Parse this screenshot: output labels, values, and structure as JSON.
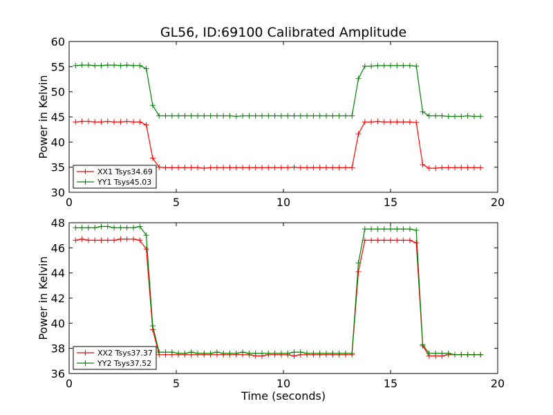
{
  "chart_data": [
    {
      "type": "line",
      "title": "GL56, ID:69100 Calibrated Amplitude",
      "xlabel": "",
      "ylabel": "Power in Kelvin",
      "xlim": [
        0,
        20
      ],
      "ylim": [
        30,
        60
      ],
      "xticks": [
        0,
        5,
        10,
        15,
        20
      ],
      "yticks": [
        30,
        35,
        40,
        45,
        50,
        55,
        60
      ],
      "legend": "lower-left",
      "grid": false,
      "x": [
        0.3,
        0.6,
        0.9,
        1.2,
        1.5,
        1.8,
        2.1,
        2.4,
        2.7,
        3.0,
        3.3,
        3.6,
        3.9,
        4.2,
        4.5,
        4.8,
        5.1,
        5.4,
        5.7,
        6.0,
        6.3,
        6.6,
        6.9,
        7.2,
        7.5,
        7.8,
        8.1,
        8.4,
        8.7,
        9.0,
        9.3,
        9.6,
        9.9,
        10.2,
        10.5,
        10.8,
        11.1,
        11.4,
        11.7,
        12.0,
        12.3,
        12.6,
        12.9,
        13.2,
        13.5,
        13.8,
        14.1,
        14.4,
        14.7,
        15.0,
        15.3,
        15.6,
        15.9,
        16.2,
        16.5,
        16.8,
        17.1,
        17.4,
        17.7,
        18.0,
        18.3,
        18.6,
        18.9,
        19.2
      ],
      "series": [
        {
          "name": "XX1 Tsys34.69",
          "color": "#ff0000",
          "values": [
            44.0,
            44.1,
            44.1,
            44.0,
            44.0,
            44.1,
            44.0,
            44.0,
            44.1,
            44.0,
            44.0,
            43.4,
            36.8,
            35.0,
            34.9,
            34.9,
            34.9,
            34.9,
            34.9,
            34.9,
            34.8,
            34.9,
            34.9,
            34.9,
            34.9,
            34.9,
            34.9,
            34.9,
            34.9,
            34.9,
            34.9,
            34.9,
            34.9,
            34.9,
            35.0,
            34.9,
            34.9,
            34.9,
            34.9,
            34.9,
            34.9,
            34.9,
            34.9,
            34.9,
            41.6,
            44.0,
            44.0,
            44.1,
            44.0,
            44.0,
            44.0,
            44.0,
            44.0,
            43.9,
            35.5,
            34.8,
            34.8,
            34.9,
            34.9,
            34.9,
            34.9,
            34.9,
            34.9,
            34.9
          ]
        },
        {
          "name": "YY1 Tsys45.03",
          "color": "#008000",
          "values": [
            55.2,
            55.3,
            55.3,
            55.2,
            55.2,
            55.3,
            55.3,
            55.2,
            55.3,
            55.2,
            55.2,
            54.6,
            47.3,
            45.2,
            45.2,
            45.2,
            45.2,
            45.2,
            45.2,
            45.2,
            45.2,
            45.2,
            45.2,
            45.2,
            45.2,
            45.1,
            45.2,
            45.2,
            45.2,
            45.2,
            45.2,
            45.2,
            45.2,
            45.2,
            45.2,
            45.2,
            45.2,
            45.2,
            45.2,
            45.2,
            45.2,
            45.2,
            45.2,
            45.2,
            52.6,
            55.1,
            55.1,
            55.2,
            55.2,
            55.2,
            55.2,
            55.2,
            55.2,
            55.1,
            46.0,
            45.2,
            45.2,
            45.2,
            45.1,
            45.1,
            45.1,
            45.2,
            45.1,
            45.1
          ]
        }
      ]
    },
    {
      "type": "line",
      "title": "",
      "xlabel": "Time (seconds)",
      "ylabel": "Power in Kelvin",
      "xlim": [
        0,
        20
      ],
      "ylim": [
        36,
        48
      ],
      "xticks": [
        0,
        5,
        10,
        15,
        20
      ],
      "yticks": [
        36,
        38,
        40,
        42,
        44,
        46,
        48
      ],
      "legend": "lower-left",
      "grid": false,
      "x": [
        0.3,
        0.6,
        0.9,
        1.2,
        1.5,
        1.8,
        2.1,
        2.4,
        2.7,
        3.0,
        3.3,
        3.6,
        3.9,
        4.2,
        4.5,
        4.8,
        5.1,
        5.4,
        5.7,
        6.0,
        6.3,
        6.6,
        6.9,
        7.2,
        7.5,
        7.8,
        8.1,
        8.4,
        8.7,
        9.0,
        9.3,
        9.6,
        9.9,
        10.2,
        10.5,
        10.8,
        11.1,
        11.4,
        11.7,
        12.0,
        12.3,
        12.6,
        12.9,
        13.2,
        13.5,
        13.8,
        14.1,
        14.4,
        14.7,
        15.0,
        15.3,
        15.6,
        15.9,
        16.2,
        16.5,
        16.8,
        17.1,
        17.4,
        17.7,
        18.0,
        18.3,
        18.6,
        18.9,
        19.2
      ],
      "series": [
        {
          "name": "XX2 Tsys37.37",
          "color": "#ff0000",
          "values": [
            46.6,
            46.7,
            46.6,
            46.6,
            46.6,
            46.6,
            46.6,
            46.7,
            46.7,
            46.7,
            46.6,
            45.9,
            39.5,
            37.5,
            37.5,
            37.5,
            37.5,
            37.5,
            37.5,
            37.5,
            37.5,
            37.5,
            37.5,
            37.5,
            37.5,
            37.5,
            37.5,
            37.5,
            37.4,
            37.4,
            37.5,
            37.5,
            37.5,
            37.5,
            37.4,
            37.5,
            37.5,
            37.5,
            37.5,
            37.5,
            37.5,
            37.5,
            37.5,
            37.5,
            44.1,
            46.6,
            46.6,
            46.6,
            46.6,
            46.6,
            46.6,
            46.6,
            46.6,
            46.4,
            38.2,
            37.4,
            37.4,
            37.4,
            37.5,
            37.5,
            37.5,
            37.5,
            37.5,
            37.5
          ]
        },
        {
          "name": "YY2 Tsys37.52",
          "color": "#008000",
          "values": [
            47.6,
            47.6,
            47.6,
            47.6,
            47.7,
            47.7,
            47.6,
            47.6,
            47.6,
            47.6,
            47.7,
            47.0,
            39.8,
            37.7,
            37.7,
            37.7,
            37.6,
            37.6,
            37.7,
            37.6,
            37.6,
            37.6,
            37.7,
            37.6,
            37.6,
            37.6,
            37.7,
            37.6,
            37.6,
            37.6,
            37.6,
            37.6,
            37.6,
            37.6,
            37.7,
            37.7,
            37.6,
            37.6,
            37.6,
            37.6,
            37.6,
            37.6,
            37.6,
            37.6,
            44.8,
            47.5,
            47.5,
            47.5,
            47.5,
            47.5,
            47.5,
            47.5,
            47.5,
            47.4,
            38.3,
            37.6,
            37.6,
            37.6,
            37.6,
            37.5,
            37.5,
            37.5,
            37.5,
            37.5
          ]
        }
      ]
    }
  ]
}
